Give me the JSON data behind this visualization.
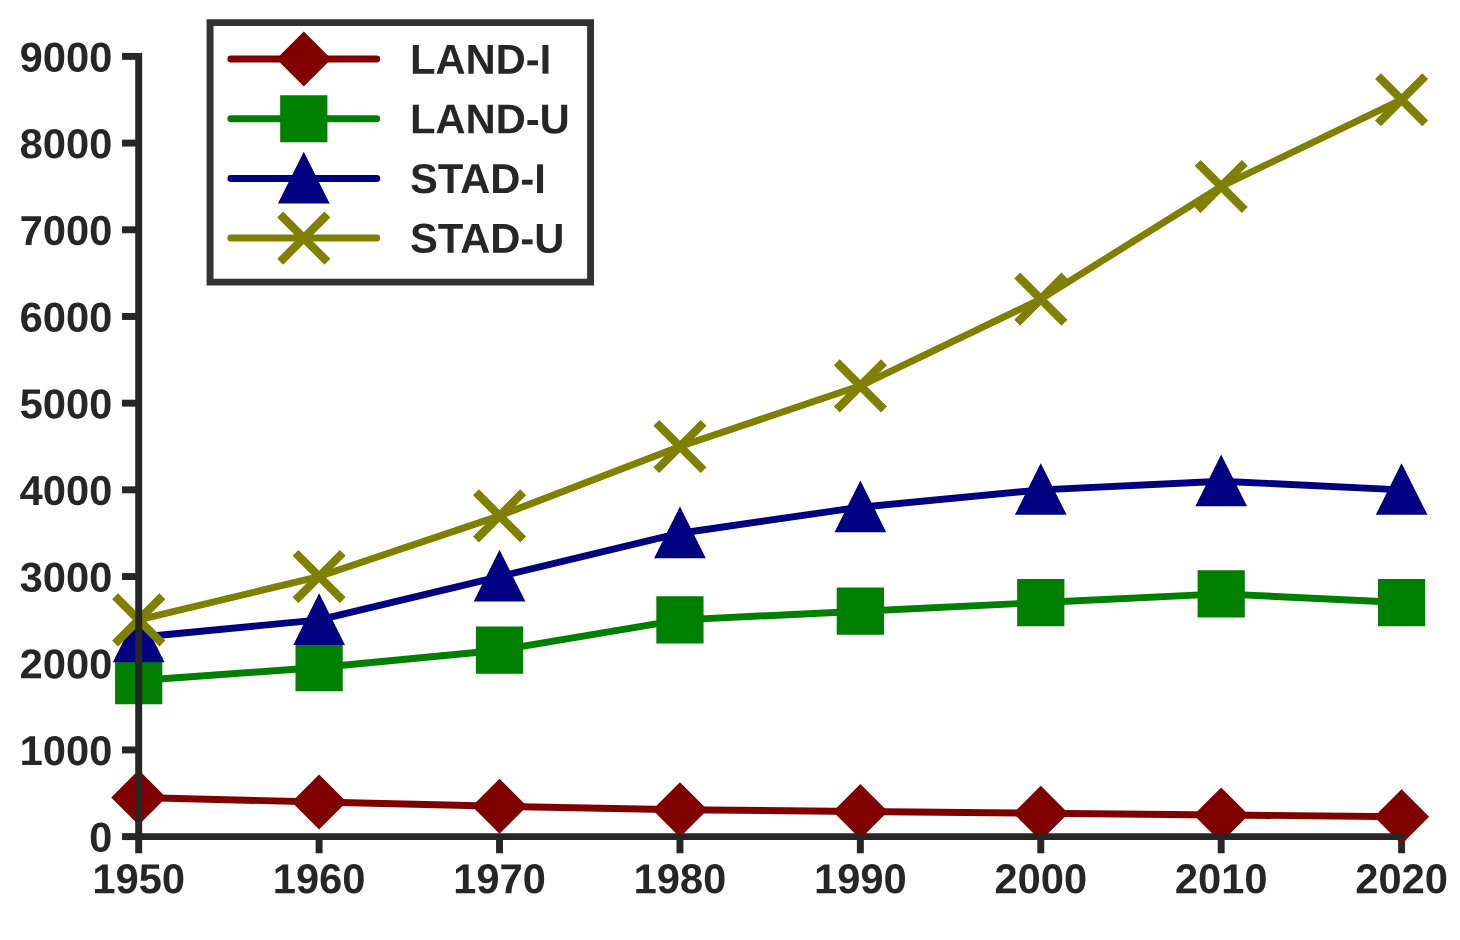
{
  "chart_data": {
    "type": "line",
    "x": [
      1950,
      1960,
      1970,
      1980,
      1990,
      2000,
      2010,
      2020
    ],
    "series": [
      {
        "name": "LAND-I",
        "color": "#800000",
        "marker": "diamond",
        "values": [
          450,
          400,
          350,
          310,
          290,
          270,
          250,
          230
        ]
      },
      {
        "name": "LAND-U",
        "color": "#008000",
        "marker": "square",
        "values": [
          1800,
          1950,
          2150,
          2500,
          2600,
          2700,
          2800,
          2700
        ]
      },
      {
        "name": "STAD-I",
        "color": "#000080",
        "marker": "triangle",
        "values": [
          2300,
          2500,
          3000,
          3500,
          3800,
          4000,
          4100,
          4000
        ]
      },
      {
        "name": "STAD-U",
        "color": "#808000",
        "marker": "cross",
        "values": [
          2500,
          3000,
          3700,
          4500,
          5200,
          6200,
          7500,
          8500
        ]
      }
    ],
    "xlim": [
      1950,
      2020
    ],
    "xticks": [
      1950,
      1960,
      1970,
      1980,
      1990,
      2000,
      2010,
      2020
    ],
    "ylim": [
      0,
      9000
    ],
    "yticks": [
      0,
      1000,
      2000,
      3000,
      4000,
      5000,
      6000,
      7000,
      8000,
      9000
    ],
    "grid": false,
    "legend": "top left"
  }
}
